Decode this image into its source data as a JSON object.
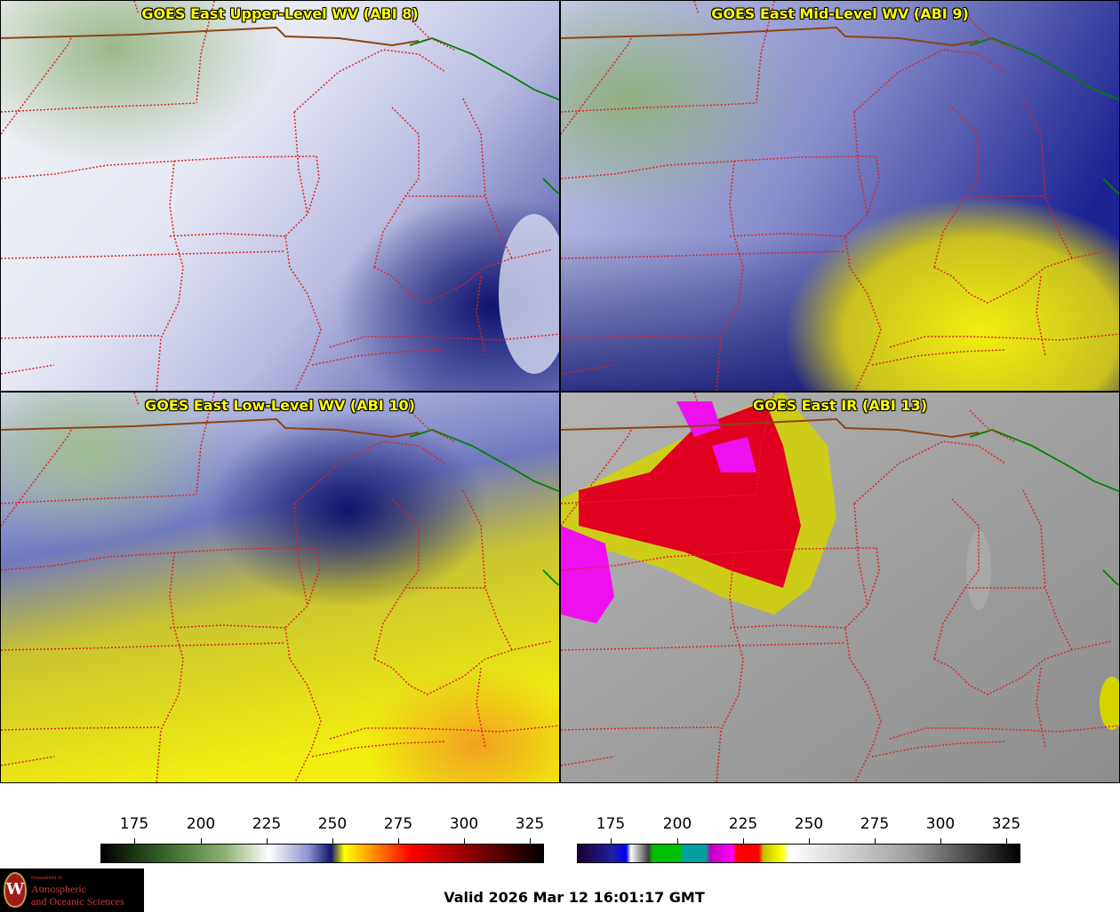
{
  "panels": [
    {
      "title": "GOES East Upper-Level WV (ABI 8)",
      "scheme": "wv_upper"
    },
    {
      "title": "GOES East Mid-Level WV (ABI 9)",
      "scheme": "wv_mid"
    },
    {
      "title": "GOES East Low-Level WV (ABI 10)",
      "scheme": "wv_low"
    },
    {
      "title": "GOES East IR (ABI 13)",
      "scheme": "ir"
    }
  ],
  "colorbars": [
    {
      "name": "water-vapor-colorbar",
      "ticks": [
        "175",
        "200",
        "225",
        "250",
        "275",
        "300",
        "325"
      ]
    },
    {
      "name": "infrared-colorbar",
      "ticks": [
        "175",
        "200",
        "225",
        "250",
        "275",
        "300",
        "325"
      ]
    }
  ],
  "valid_time": "Valid 2026 Mar 12 16:01:17 GMT",
  "logo": {
    "line1": "Department of",
    "line2": "Atmospheric",
    "line3": "and Oceanic Sciences",
    "mark": "W"
  },
  "colors": {
    "state_borders": "#dd2222",
    "canada_border": "#8b4513",
    "lake_border": "#008000",
    "title_text": "#ffff00"
  }
}
